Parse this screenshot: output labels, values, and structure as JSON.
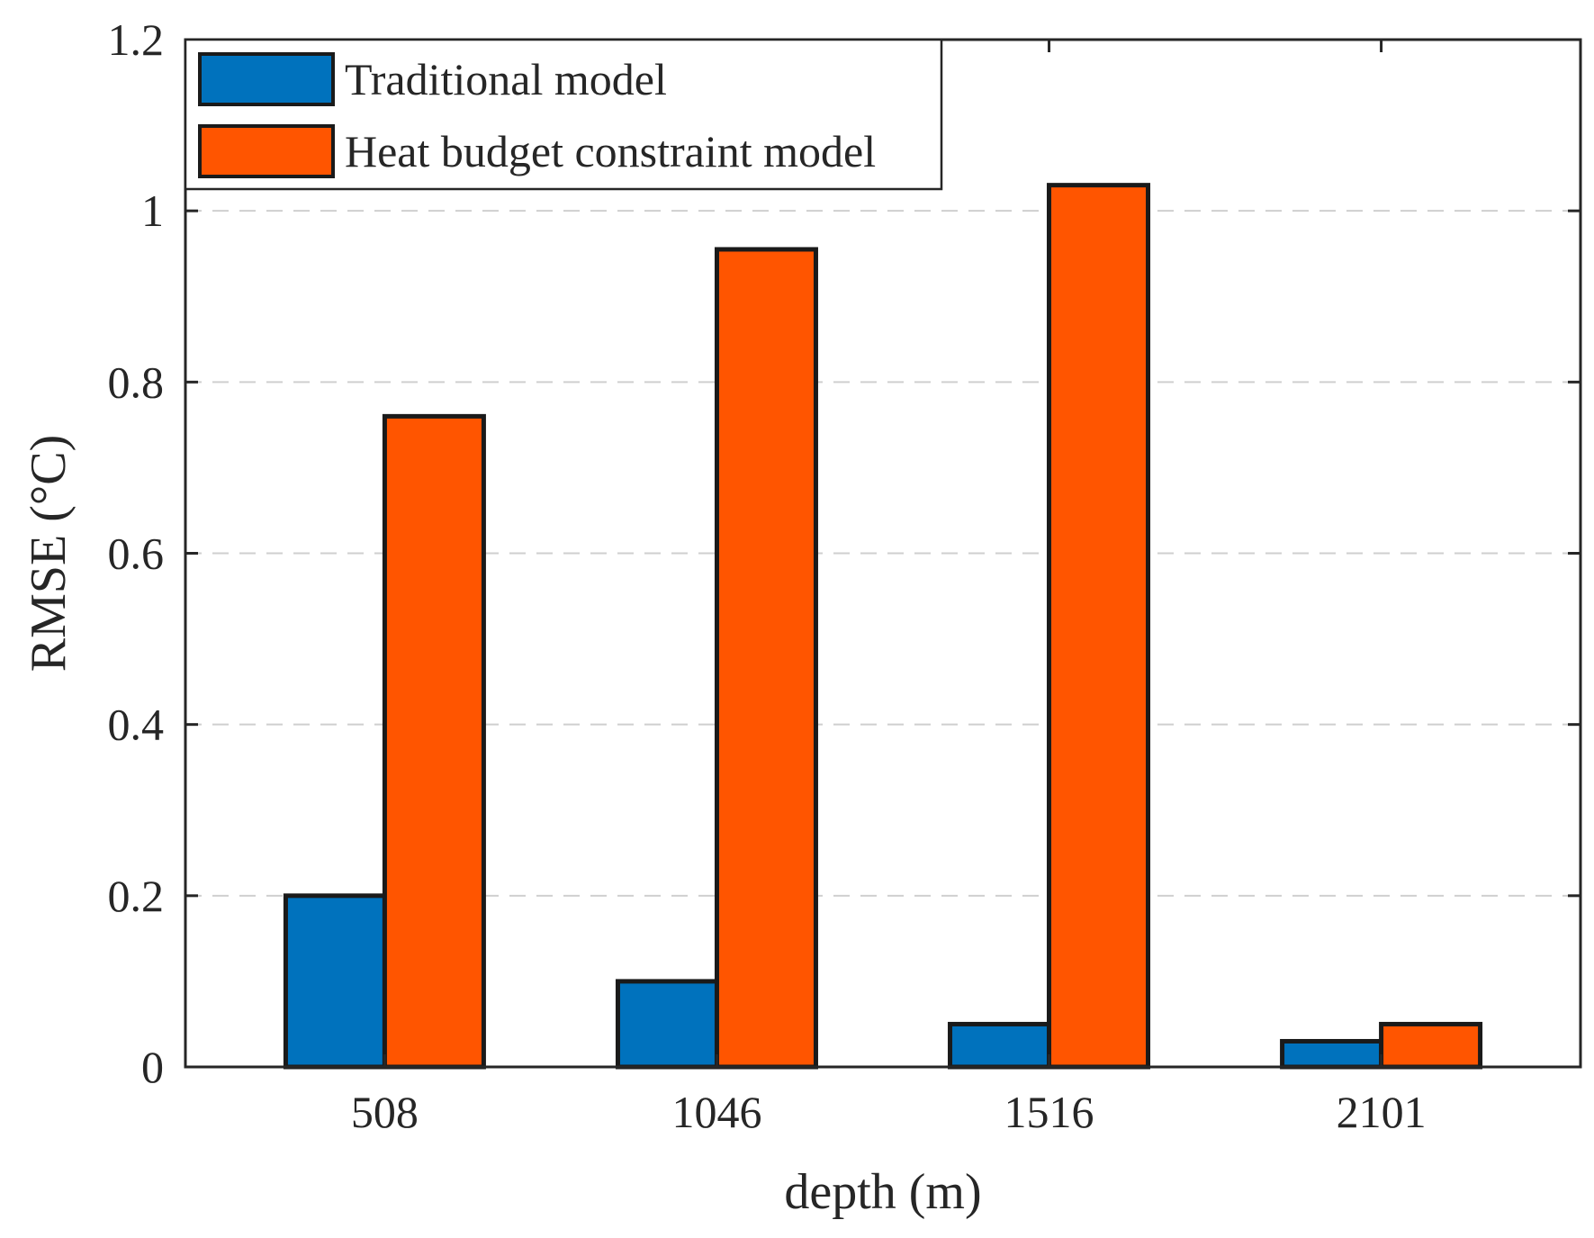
{
  "chart_data": {
    "type": "bar",
    "title": "",
    "xlabel": "depth (m)",
    "ylabel": "RMSE (°C)",
    "categories": [
      "508",
      "1046",
      "1516",
      "2101"
    ],
    "series": [
      {
        "name": "Traditional model",
        "color": "#0072BD",
        "values": [
          0.2,
          0.1,
          0.05,
          0.03
        ]
      },
      {
        "name": "Heat budget constraint model",
        "color": "#FF5500",
        "values": [
          0.76,
          0.955,
          1.03,
          0.05
        ]
      }
    ],
    "ylim": [
      0,
      1.2
    ],
    "yticks": [
      0,
      0.2,
      0.4,
      0.6,
      0.8,
      1,
      1.2
    ],
    "ytick_labels": [
      "0",
      "0.2",
      "0.4",
      "0.6",
      "0.8",
      "1",
      "1.2"
    ],
    "grid": "horizontal dashed",
    "legend_position": "top-left"
  }
}
